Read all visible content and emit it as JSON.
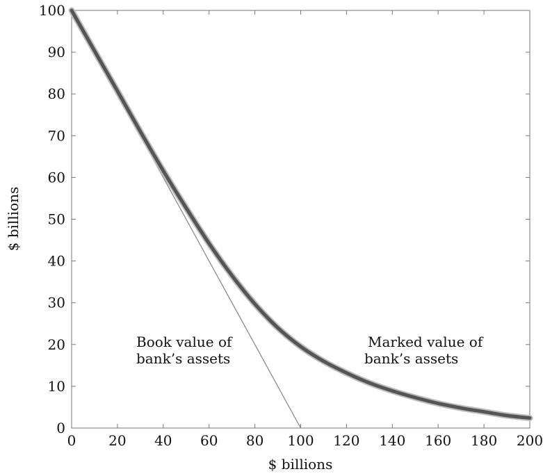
{
  "chart_data": {
    "type": "line",
    "xlabel": "$ billions",
    "ylabel": "$ billions",
    "xlim": [
      0,
      200
    ],
    "ylim": [
      0,
      100
    ],
    "x_ticks": [
      "0",
      "20",
      "40",
      "60",
      "80",
      "100",
      "120",
      "140",
      "160",
      "180",
      "200"
    ],
    "y_ticks": [
      "0",
      "10",
      "20",
      "30",
      "40",
      "50",
      "60",
      "70",
      "80",
      "90",
      "100"
    ],
    "grid": false,
    "series": [
      {
        "key": "book",
        "x": [
          0,
          100
        ],
        "y": [
          100,
          0
        ],
        "color": "#8a8a8a"
      },
      {
        "key": "marked",
        "x": [
          0,
          10,
          20,
          30,
          40,
          50,
          60,
          70,
          80,
          90,
          100,
          110,
          120,
          130,
          140,
          150,
          160,
          170,
          180,
          190,
          200
        ],
        "y": [
          100,
          90.3,
          80.7,
          71,
          61.6,
          52.7,
          44.2,
          36.5,
          29.7,
          24,
          19.5,
          16,
          13.2,
          10.8,
          8.9,
          7.3,
          5.9,
          4.8,
          3.9,
          3,
          2.4
        ],
        "color": "#555555"
      }
    ],
    "annotations": [
      {
        "key": "book_label",
        "lines": [
          "Book value of",
          "bank’s assets"
        ]
      },
      {
        "key": "marked_label",
        "lines": [
          "Marked value of",
          "bank’s assets"
        ]
      }
    ]
  }
}
